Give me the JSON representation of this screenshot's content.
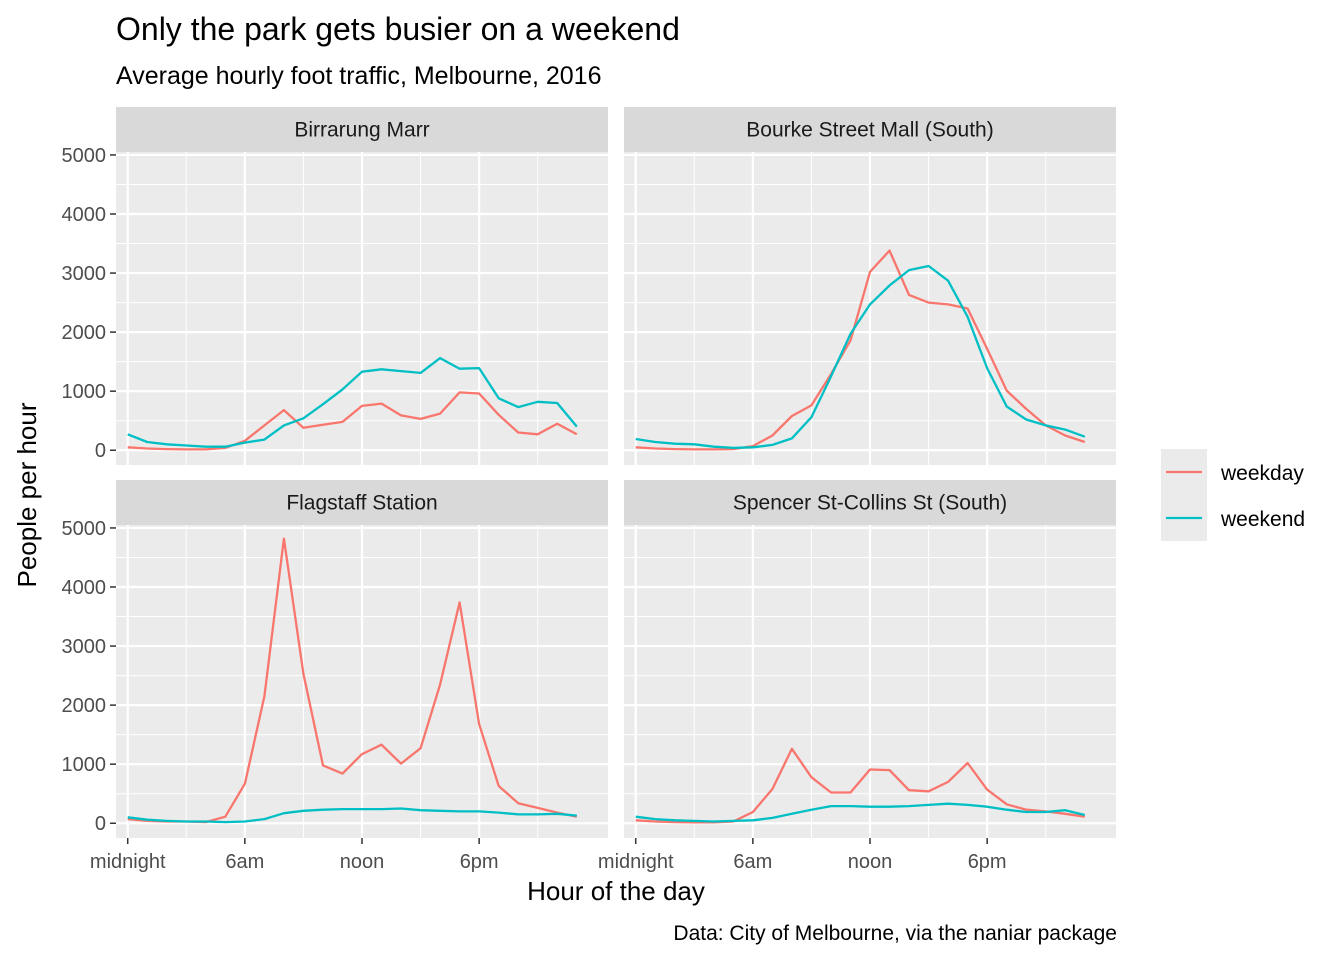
{
  "chart_data": {
    "type": "line",
    "title": "Only the park gets busier on a weekend",
    "subtitle": "Average hourly foot traffic, Melbourne, 2016",
    "xlabel": "Hour of the day",
    "ylabel": "People per hour",
    "caption": "Data: City of Melbourne, via the naniar package",
    "x_ticks": [
      {
        "value": 0,
        "label": "midnight"
      },
      {
        "value": 6,
        "label": "6am"
      },
      {
        "value": 12,
        "label": "noon"
      },
      {
        "value": 18,
        "label": "6pm"
      }
    ],
    "y_ticks": [
      0,
      1000,
      2000,
      3000,
      4000,
      5000
    ],
    "xlim": [
      -0.6,
      24.6
    ],
    "ylim": [
      -250,
      5050
    ],
    "grid": true,
    "legend_position": "right",
    "series_colors": {
      "weekday": "#F8766D",
      "weekend": "#00BFC4"
    },
    "legend": [
      "weekday",
      "weekend"
    ],
    "hours": [
      0,
      1,
      2,
      3,
      4,
      5,
      6,
      7,
      8,
      9,
      10,
      11,
      12,
      13,
      14,
      15,
      16,
      17,
      18,
      19,
      20,
      21,
      22,
      23
    ],
    "facets": [
      {
        "name": "Birrarung Marr",
        "series": [
          {
            "name": "weekday",
            "values": [
              50,
              30,
              20,
              15,
              15,
              40,
              160,
              420,
              680,
              380,
              430,
              480,
              750,
              790,
              590,
              530,
              620,
              980,
              960,
              600,
              300,
              270,
              450,
              270
            ]
          },
          {
            "name": "weekend",
            "values": [
              270,
              140,
              100,
              80,
              60,
              60,
              130,
              180,
              420,
              540,
              780,
              1030,
              1330,
              1370,
              1340,
              1310,
              1560,
              1380,
              1390,
              880,
              730,
              820,
              800,
              400
            ]
          }
        ]
      },
      {
        "name": "Bourke Street Mall (South)",
        "series": [
          {
            "name": "weekday",
            "values": [
              50,
              30,
              20,
              15,
              15,
              20,
              70,
              250,
              580,
              760,
              1290,
              1860,
              3020,
              3380,
              2630,
              2500,
              2470,
              2400,
              1720,
              1010,
              700,
              420,
              250,
              140
            ]
          },
          {
            "name": "weekend",
            "values": [
              190,
              140,
              110,
              100,
              60,
              40,
              50,
              90,
              200,
              560,
              1250,
              1970,
              2470,
              2790,
              3050,
              3120,
              2870,
              2260,
              1390,
              740,
              520,
              420,
              350,
              230
            ]
          }
        ]
      },
      {
        "name": "Flagstaff Station",
        "series": [
          {
            "name": "weekday",
            "values": [
              70,
              40,
              30,
              30,
              20,
              110,
              670,
              2150,
              4820,
              2530,
              980,
              840,
              1170,
              1330,
              1010,
              1270,
              2350,
              3740,
              1680,
              630,
              340,
              260,
              180,
              110
            ]
          },
          {
            "name": "weekend",
            "values": [
              100,
              60,
              40,
              30,
              30,
              20,
              30,
              70,
              170,
              210,
              230,
              240,
              240,
              240,
              250,
              220,
              210,
              200,
              200,
              180,
              150,
              150,
              160,
              130
            ]
          }
        ]
      },
      {
        "name": "Spencer St-Collins St (South)",
        "series": [
          {
            "name": "weekday",
            "values": [
              50,
              30,
              20,
              15,
              15,
              30,
              190,
              580,
              1260,
              780,
              520,
              520,
              910,
              900,
              560,
              540,
              700,
              1020,
              570,
              320,
              230,
              200,
              160,
              110
            ]
          },
          {
            "name": "weekend",
            "values": [
              110,
              70,
              50,
              40,
              30,
              40,
              50,
              90,
              160,
              230,
              290,
              290,
              280,
              280,
              290,
              310,
              330,
              310,
              280,
              230,
              190,
              190,
              220,
              140
            ]
          }
        ]
      }
    ]
  }
}
